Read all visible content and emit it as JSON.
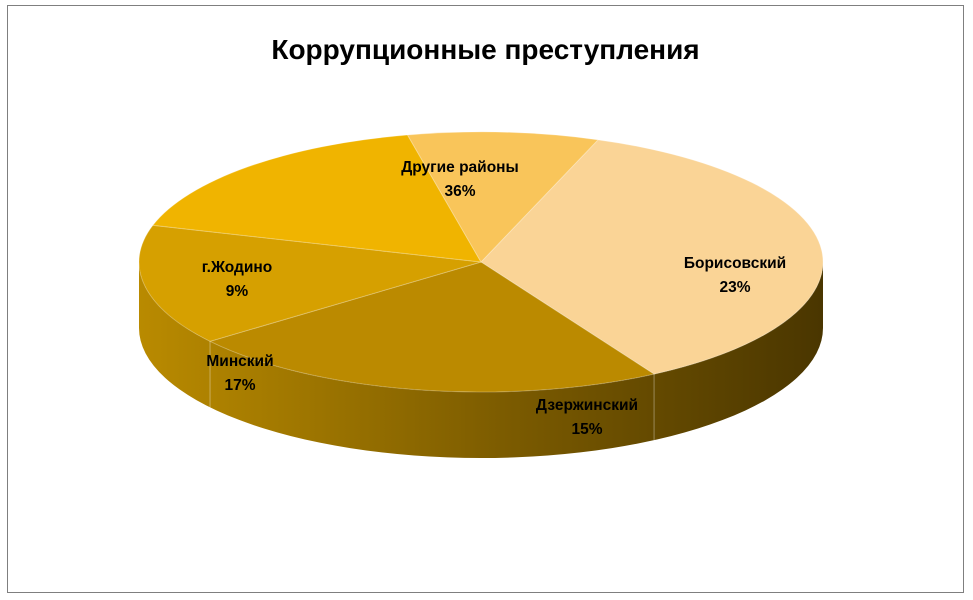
{
  "chart_data": {
    "type": "pie",
    "title": "Коррупционные преступления",
    "slices": [
      {
        "label": "Другие районы",
        "value": 36,
        "value_label": "36%",
        "color": "#fad496"
      },
      {
        "label": "Борисовский",
        "value": 23,
        "value_label": "23%",
        "color": "#bb8a00"
      },
      {
        "label": "Дзержинский",
        "value": 15,
        "value_label": "15%",
        "color": "#d6a000"
      },
      {
        "label": "Минский",
        "value": 17,
        "value_label": "17%",
        "color": "#f0b400"
      },
      {
        "label": "г.Жодино",
        "value": 9,
        "value_label": "9%",
        "color": "#f9c55a"
      }
    ],
    "style": "3d",
    "legend": "none",
    "data_labels": "category-and-percent"
  }
}
